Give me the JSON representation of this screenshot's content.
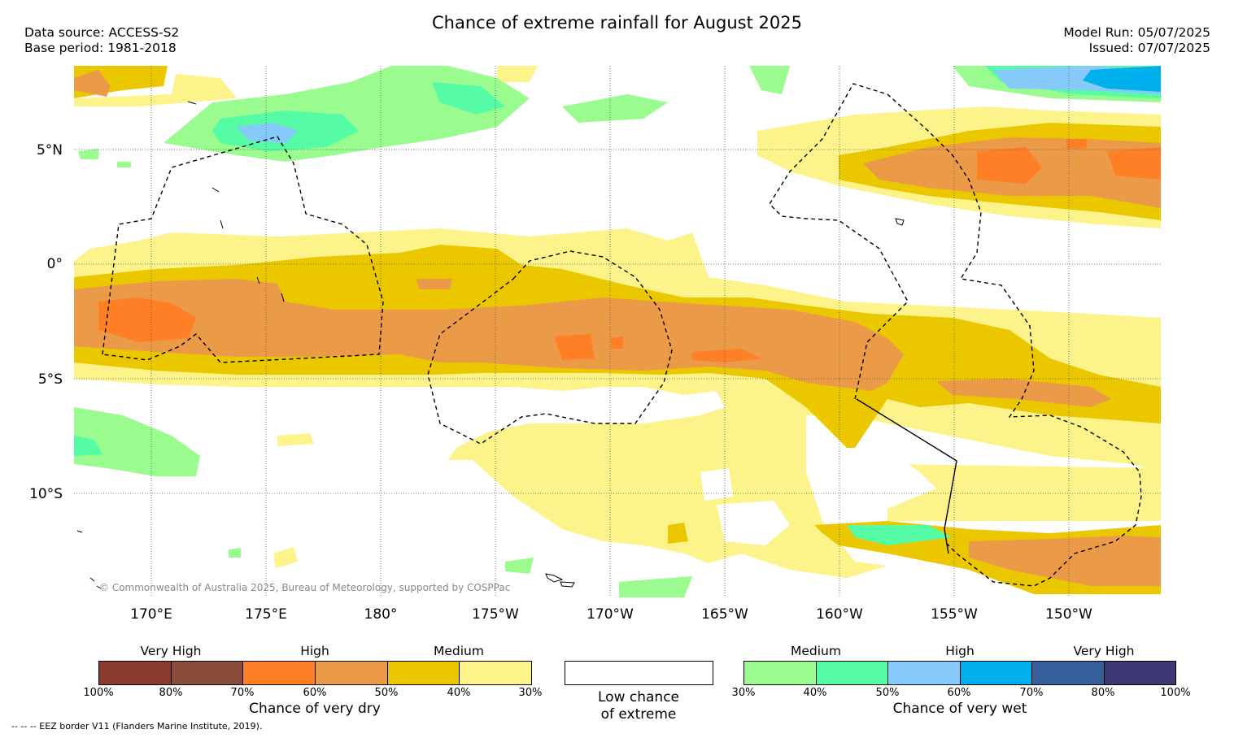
{
  "header": {
    "title": "Chance of extreme rainfall for August 2025",
    "data_source": "Data source: ACCESS-S2",
    "base_period": "Base period: 1981-2018",
    "model_run": "Model Run: 05/07/2025",
    "issued": "Issued: 07/07/2025"
  },
  "map": {
    "lat_labels": [
      "5°N",
      "0°",
      "5°S",
      "10°S"
    ],
    "lon_labels": [
      "170°E",
      "175°E",
      "180°",
      "175°W",
      "170°W",
      "165°W",
      "160°W",
      "155°W",
      "150°W"
    ],
    "copyright": "© Commonwealth of Australia 2025, Bureau of Meteorology, supported by COSPPac"
  },
  "legend": {
    "dry": {
      "categories": [
        "Very High",
        "High",
        "Medium"
      ],
      "colors": [
        "#8b3a30",
        "#8b4c3a",
        "#ff7f27",
        "#eb9a47",
        "#ebc700",
        "#fdf38b"
      ],
      "ticks": [
        "100%",
        "80%",
        "70%",
        "60%",
        "50%",
        "40%",
        "30%"
      ],
      "label": "Chance of very dry"
    },
    "neutral": {
      "label_line1": "Low chance",
      "label_line2": "of extreme"
    },
    "wet": {
      "categories": [
        "Medium",
        "High",
        "Very High"
      ],
      "colors": [
        "#9afb8e",
        "#56fba6",
        "#86c9fb",
        "#00b0ed",
        "#355f9a",
        "#3b3874"
      ],
      "ticks": [
        "30%",
        "40%",
        "50%",
        "60%",
        "70%",
        "80%",
        "100%"
      ],
      "label": "Chance of very wet"
    },
    "eez_note": "--  --  -- EEZ border V11 (Flanders Marine Institute, 2019)."
  }
}
